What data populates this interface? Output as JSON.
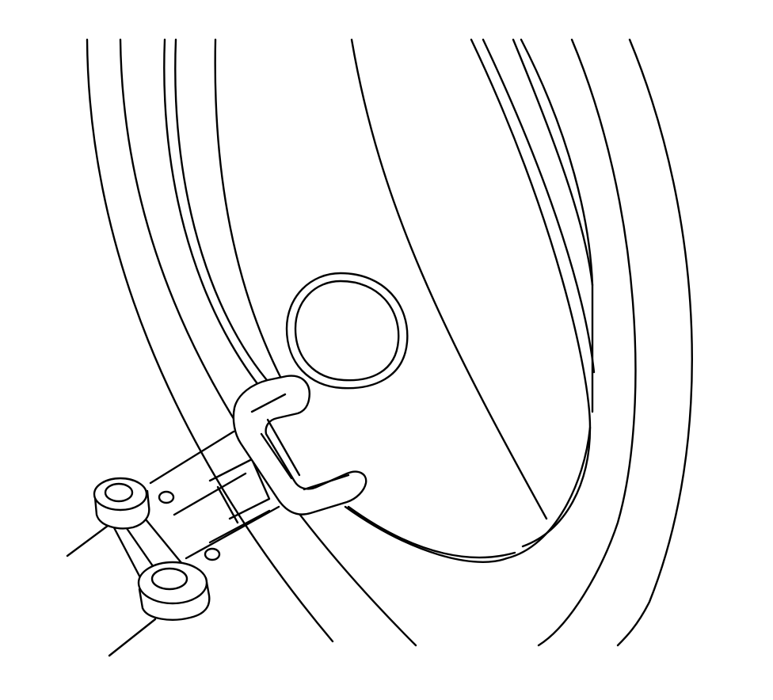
{
  "figure": {
    "kind": "line-art technical illustration",
    "subject": "spare-tire-rim-and-hanger-bracket",
    "colors": {
      "stroke": "#000000",
      "background": "#ffffff"
    }
  }
}
